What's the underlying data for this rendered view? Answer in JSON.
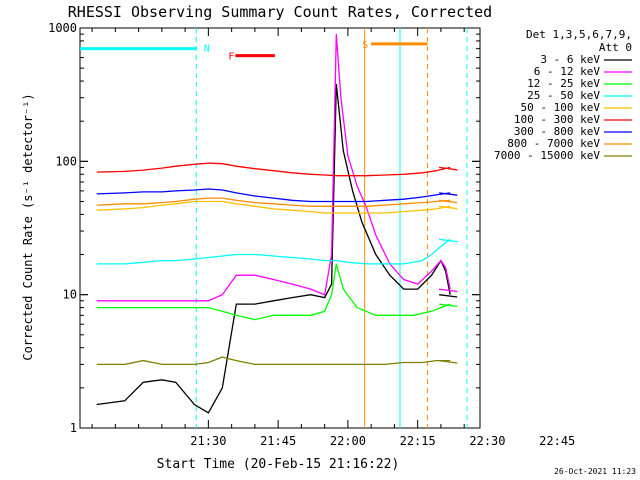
{
  "chart_data": {
    "type": "line",
    "title": "RHESSI Observing Summary Count Rates, Corrected",
    "xlabel": "Start Time (20-Feb-15 21:16:22)",
    "ylabel": "Corrected Count Rate (s⁻¹ detector⁻¹)",
    "yscale": "log",
    "ylim": [
      1,
      1000
    ],
    "y_tick_labels": [
      "1",
      "10",
      "100",
      "1000"
    ],
    "xlim_minutes": [
      -27.6,
      58.4
    ],
    "x_tick_labels": [
      "21:30",
      "21:45",
      "22:00",
      "22:15",
      "22:30",
      "22:45"
    ],
    "x_tick_minutes": [
      0,
      15,
      30,
      45,
      60,
      75
    ],
    "legend_header": [
      "Det 1,3,5,6,7,9,",
      "Att 0"
    ],
    "legend_position": "top-right",
    "timestamp": "26-Oct-2021 11:23",
    "markers": [
      {
        "label": "N",
        "color": "#00ffff",
        "y": 700
      },
      {
        "label": "F",
        "color": "#ff0000",
        "y": 620
      },
      {
        "label": "S",
        "color": "#ff8c00",
        "y": 760
      }
    ],
    "series": [
      {
        "name": "3 - 6 keV",
        "color": "#000000",
        "points": [
          [
            -24,
            1.5
          ],
          [
            -18,
            1.6
          ],
          [
            -14,
            2.2
          ],
          [
            -10,
            2.3
          ],
          [
            -7,
            2.2
          ],
          [
            -3,
            1.5
          ],
          [
            0,
            1.3
          ],
          [
            3,
            2.0
          ],
          [
            6,
            8.5
          ],
          [
            10,
            8.5
          ],
          [
            14,
            9.0
          ],
          [
            18,
            9.5
          ],
          [
            22,
            10
          ],
          [
            25,
            9.5
          ],
          [
            26.5,
            12
          ],
          [
            27.5,
            380
          ],
          [
            29,
            120
          ],
          [
            31,
            60
          ],
          [
            33,
            35
          ],
          [
            36,
            20
          ],
          [
            39,
            14
          ],
          [
            42,
            11
          ],
          [
            45,
            11
          ],
          [
            48,
            14
          ],
          [
            50,
            18
          ],
          [
            51,
            15
          ],
          [
            52,
            10
          ]
        ]
      },
      {
        "name": "6 - 12 keV",
        "color": "#ff00ff",
        "points": [
          [
            -24,
            9
          ],
          [
            -18,
            9
          ],
          [
            -14,
            9
          ],
          [
            -10,
            9
          ],
          [
            -7,
            9
          ],
          [
            -3,
            9
          ],
          [
            0,
            9
          ],
          [
            3,
            10
          ],
          [
            6,
            14
          ],
          [
            10,
            14
          ],
          [
            14,
            13
          ],
          [
            18,
            12
          ],
          [
            22,
            11
          ],
          [
            25,
            10
          ],
          [
            26.5,
            20
          ],
          [
            27.5,
            900
          ],
          [
            28.5,
            300
          ],
          [
            30,
            110
          ],
          [
            32,
            65
          ],
          [
            34,
            45
          ],
          [
            36,
            28
          ],
          [
            39,
            17
          ],
          [
            42,
            13
          ],
          [
            45,
            12
          ],
          [
            48,
            15
          ],
          [
            50,
            18
          ],
          [
            51,
            16
          ],
          [
            52,
            11
          ]
        ]
      },
      {
        "name": "12 - 25 keV",
        "color": "#00ff00",
        "points": [
          [
            -24,
            8
          ],
          [
            -18,
            8
          ],
          [
            -14,
            8
          ],
          [
            -10,
            8
          ],
          [
            -7,
            8
          ],
          [
            -3,
            8
          ],
          [
            0,
            8
          ],
          [
            3,
            7.5
          ],
          [
            6,
            7
          ],
          [
            10,
            6.5
          ],
          [
            14,
            7
          ],
          [
            18,
            7
          ],
          [
            22,
            7
          ],
          [
            25,
            7.5
          ],
          [
            26.5,
            10
          ],
          [
            27.5,
            17
          ],
          [
            29,
            11
          ],
          [
            32,
            8
          ],
          [
            36,
            7
          ],
          [
            40,
            7
          ],
          [
            44,
            7
          ],
          [
            48,
            7.5
          ],
          [
            50,
            8
          ],
          [
            52,
            8.5
          ]
        ]
      },
      {
        "name": "25 - 50 keV",
        "color": "#00ffff",
        "points": [
          [
            -24,
            17
          ],
          [
            -18,
            17
          ],
          [
            -14,
            17.5
          ],
          [
            -10,
            18
          ],
          [
            -7,
            18
          ],
          [
            -3,
            18.5
          ],
          [
            0,
            19
          ],
          [
            3,
            19.5
          ],
          [
            6,
            20
          ],
          [
            10,
            20
          ],
          [
            14,
            19.5
          ],
          [
            18,
            19
          ],
          [
            22,
            18.5
          ],
          [
            25,
            18
          ],
          [
            27.5,
            18
          ],
          [
            30,
            17.5
          ],
          [
            34,
            17
          ],
          [
            38,
            17
          ],
          [
            42,
            17
          ],
          [
            46,
            18
          ],
          [
            48,
            20
          ],
          [
            50,
            23
          ],
          [
            52,
            26
          ]
        ]
      },
      {
        "name": "50 - 100 keV",
        "color": "#ffbf00",
        "points": [
          [
            -24,
            43
          ],
          [
            -18,
            44
          ],
          [
            -14,
            45
          ],
          [
            -10,
            47
          ],
          [
            -7,
            48
          ],
          [
            -3,
            50
          ],
          [
            0,
            50
          ],
          [
            3,
            50
          ],
          [
            6,
            48
          ],
          [
            10,
            46
          ],
          [
            14,
            44
          ],
          [
            18,
            43
          ],
          [
            22,
            42
          ],
          [
            25,
            41
          ],
          [
            27.5,
            41
          ],
          [
            30,
            41
          ],
          [
            34,
            41
          ],
          [
            38,
            41
          ],
          [
            42,
            42
          ],
          [
            46,
            43
          ],
          [
            49,
            44
          ],
          [
            52,
            46
          ]
        ]
      },
      {
        "name": "100 - 300 keV",
        "color": "#ff0000",
        "points": [
          [
            -24,
            83
          ],
          [
            -18,
            84
          ],
          [
            -14,
            86
          ],
          [
            -10,
            89
          ],
          [
            -7,
            92
          ],
          [
            -3,
            95
          ],
          [
            0,
            97
          ],
          [
            3,
            96
          ],
          [
            6,
            92
          ],
          [
            10,
            88
          ],
          [
            14,
            85
          ],
          [
            18,
            82
          ],
          [
            22,
            80
          ],
          [
            25,
            79
          ],
          [
            27.5,
            78
          ],
          [
            30,
            78
          ],
          [
            34,
            78
          ],
          [
            38,
            79
          ],
          [
            42,
            80
          ],
          [
            46,
            82
          ],
          [
            49,
            85
          ],
          [
            52,
            90
          ]
        ]
      },
      {
        "name": "300 - 800 keV",
        "color": "#0000ff",
        "points": [
          [
            -24,
            57
          ],
          [
            -18,
            58
          ],
          [
            -14,
            59
          ],
          [
            -10,
            59
          ],
          [
            -7,
            60
          ],
          [
            -3,
            61
          ],
          [
            0,
            62
          ],
          [
            3,
            61
          ],
          [
            6,
            58
          ],
          [
            10,
            55
          ],
          [
            14,
            53
          ],
          [
            18,
            51
          ],
          [
            22,
            50
          ],
          [
            25,
            50
          ],
          [
            27.5,
            50
          ],
          [
            30,
            50
          ],
          [
            34,
            50
          ],
          [
            38,
            51
          ],
          [
            42,
            52
          ],
          [
            46,
            54
          ],
          [
            49,
            56
          ],
          [
            52,
            58
          ]
        ]
      },
      {
        "name": "800 - 7000 keV",
        "color": "#ff8c00",
        "points": [
          [
            -24,
            47
          ],
          [
            -18,
            48
          ],
          [
            -14,
            48
          ],
          [
            -10,
            49
          ],
          [
            -7,
            50
          ],
          [
            -3,
            52
          ],
          [
            0,
            53
          ],
          [
            3,
            53
          ],
          [
            6,
            51
          ],
          [
            10,
            49
          ],
          [
            14,
            48
          ],
          [
            18,
            47
          ],
          [
            22,
            46
          ],
          [
            25,
            46
          ],
          [
            27.5,
            46
          ],
          [
            30,
            46
          ],
          [
            34,
            46
          ],
          [
            38,
            47
          ],
          [
            42,
            48
          ],
          [
            46,
            49
          ],
          [
            49,
            50
          ],
          [
            52,
            51
          ]
        ]
      },
      {
        "name": "7000 - 15000 keV",
        "color": "#808000",
        "points": [
          [
            -24,
            3.0
          ],
          [
            -18,
            3.0
          ],
          [
            -14,
            3.2
          ],
          [
            -10,
            3.0
          ],
          [
            -7,
            3.0
          ],
          [
            -3,
            3.0
          ],
          [
            0,
            3.1
          ],
          [
            3,
            3.4
          ],
          [
            6,
            3.2
          ],
          [
            10,
            3.0
          ],
          [
            14,
            3.0
          ],
          [
            18,
            3.0
          ],
          [
            22,
            3.0
          ],
          [
            25,
            3.0
          ],
          [
            27.5,
            3.0
          ],
          [
            30,
            3.0
          ],
          [
            34,
            3.0
          ],
          [
            38,
            3.0
          ],
          [
            42,
            3.1
          ],
          [
            46,
            3.1
          ],
          [
            49,
            3.2
          ],
          [
            52,
            3.2
          ]
        ]
      }
    ]
  }
}
